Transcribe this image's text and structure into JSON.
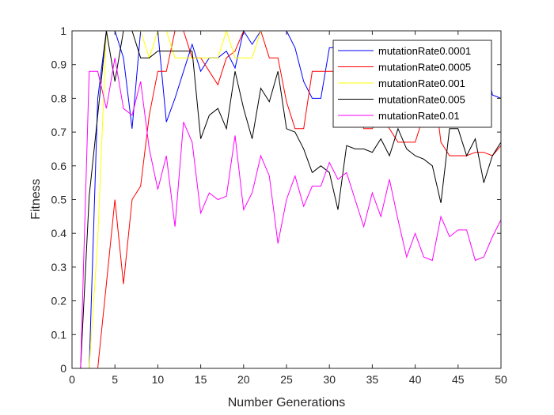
{
  "chart_data": {
    "type": "line",
    "xlabel": "Number Generations",
    "ylabel": "Fitness",
    "xlim": [
      0,
      50
    ],
    "ylim": [
      0,
      1
    ],
    "xticks": [
      "0",
      "5",
      "10",
      "15",
      "20",
      "25",
      "30",
      "35",
      "40",
      "45",
      "50"
    ],
    "yticks": [
      "0",
      "0.1",
      "0.2",
      "0.3",
      "0.4",
      "0.5",
      "0.6",
      "0.7",
      "0.8",
      "0.9",
      "1"
    ],
    "grid": false,
    "legend_position": "top-right",
    "x": [
      1,
      2,
      3,
      4,
      5,
      6,
      7,
      8,
      9,
      10,
      11,
      12,
      13,
      14,
      15,
      16,
      17,
      18,
      19,
      20,
      21,
      22,
      23,
      24,
      25,
      26,
      27,
      28,
      29,
      30,
      31,
      32,
      33,
      34,
      35,
      36,
      37,
      38,
      39,
      40,
      41,
      42,
      43,
      44,
      45,
      46,
      47,
      48,
      49,
      50
    ],
    "series": [
      {
        "name": "mutationRate0.0001",
        "color": "#0000ff",
        "values": [
          0,
          0,
          0.8,
          1,
          1,
          0.92,
          0.71,
          1,
          1,
          1,
          0.73,
          0.8,
          0.88,
          0.96,
          0.88,
          0.92,
          0.92,
          0.94,
          0.89,
          1,
          0.96,
          1,
          1,
          1,
          1,
          0.95,
          0.85,
          0.8,
          0.8,
          0.95,
          0.95,
          0.95,
          0.95,
          0.95,
          0.95,
          0.95,
          0.95,
          0.95,
          0.95,
          0.95,
          0.95,
          0.95,
          0.95,
          0.95,
          0.95,
          0.95,
          0.95,
          0.95,
          0.81,
          0.8
        ]
      },
      {
        "name": "mutationRate0.0005",
        "color": "#ff0000",
        "values": [
          0,
          0,
          0,
          0.25,
          0.5,
          0.25,
          0.5,
          0.54,
          0.75,
          0.88,
          0.88,
          1,
          1,
          0.92,
          0.92,
          0.88,
          0.84,
          0.92,
          0.94,
          1,
          1,
          1,
          0.92,
          0.92,
          0.79,
          0.71,
          0.71,
          0.88,
          0.88,
          0.88,
          0.88,
          0.88,
          0.88,
          0.71,
          0.71,
          0.75,
          0.71,
          0.67,
          0.67,
          0.67,
          0.75,
          0.88,
          0.67,
          0.63,
          0.63,
          0.63,
          0.64,
          0.64,
          0.63,
          0.66
        ]
      },
      {
        "name": "mutationRate0.001",
        "color": "#ffff00",
        "values": [
          0,
          0,
          0.38,
          1,
          1,
          1,
          1,
          1,
          0.92,
          1,
          1,
          0.92,
          0.92,
          0.92,
          0.92,
          0.92,
          0.92,
          1,
          0.92,
          0.92,
          0.92,
          1,
          1,
          1,
          1,
          1,
          1,
          1,
          1,
          1,
          1,
          1,
          1,
          1,
          1,
          1,
          1,
          1,
          1,
          1,
          1,
          1,
          1,
          1,
          1,
          1,
          1,
          1,
          1,
          1
        ]
      },
      {
        "name": "mutationRate0.005",
        "color": "#000000",
        "values": [
          0,
          0.51,
          0.75,
          1,
          0.85,
          1,
          1,
          0.92,
          0.92,
          0.94,
          0.94,
          0.94,
          0.94,
          0.94,
          0.68,
          0.75,
          0.77,
          0.71,
          0.88,
          0.77,
          0.68,
          0.83,
          0.79,
          0.88,
          0.71,
          0.7,
          0.65,
          0.58,
          0.6,
          0.58,
          0.47,
          0.66,
          0.65,
          0.65,
          0.64,
          0.68,
          0.63,
          0.71,
          0.65,
          0.63,
          0.62,
          0.6,
          0.49,
          0.71,
          0.71,
          0.63,
          0.68,
          0.55,
          0.63,
          0.67
        ]
      },
      {
        "name": "mutationRate0.01",
        "color": "#ff00ff",
        "values": [
          0,
          0.88,
          0.88,
          0.77,
          0.92,
          0.77,
          0.75,
          0.85,
          0.65,
          0.53,
          0.63,
          0.42,
          0.73,
          0.67,
          0.46,
          0.52,
          0.5,
          0.51,
          0.69,
          0.47,
          0.52,
          0.63,
          0.57,
          0.37,
          0.5,
          0.57,
          0.48,
          0.54,
          0.54,
          0.61,
          0.56,
          0.58,
          0.5,
          0.42,
          0.52,
          0.45,
          0.56,
          0.44,
          0.33,
          0.4,
          0.33,
          0.32,
          0.45,
          0.39,
          0.41,
          0.41,
          0.32,
          0.33,
          0.39,
          0.44
        ]
      }
    ]
  }
}
